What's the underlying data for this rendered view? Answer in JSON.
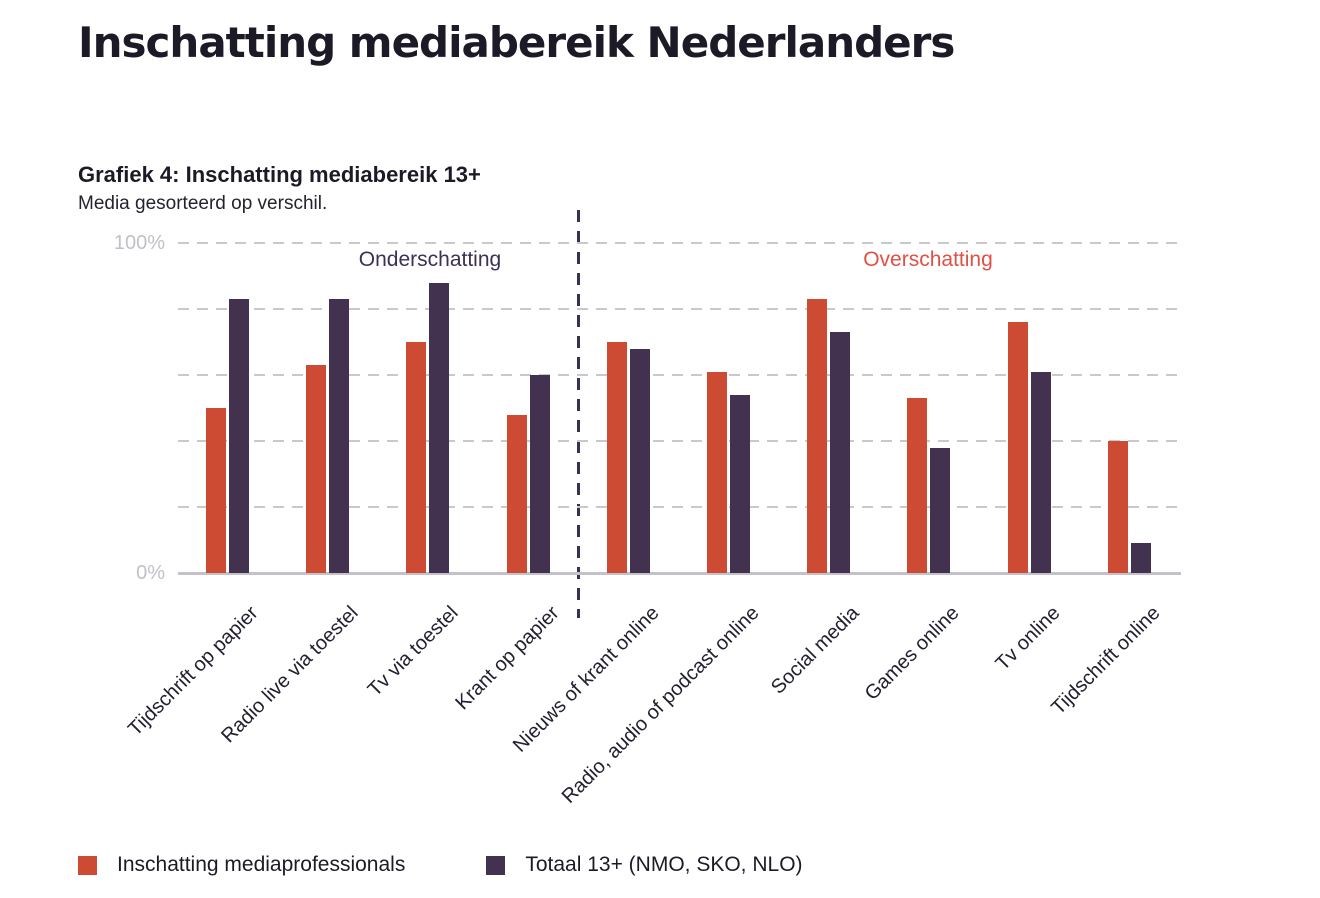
{
  "page": {
    "title": "Inschatting mediabereik Nederlanders",
    "chart_heading": "Grafiek 4: Inschatting mediabereik 13+",
    "chart_subheading": "Media gesorteerd op verschil."
  },
  "chart_data": {
    "type": "bar",
    "title": "Grafiek 4: Inschatting mediabereik 13+",
    "subtitle": "Media gesorteerd op verschil.",
    "ylim": [
      0,
      100
    ],
    "y_unit": "%",
    "ytick_labels": [
      "100%",
      "0%"
    ],
    "gridline_percents": [
      100,
      80,
      60,
      40,
      20
    ],
    "grid": "horizontal-dashed",
    "legend_position": "bottom-left",
    "categories": [
      "Tijdschrift op papier",
      "Radio live via toestel",
      "Tv via toestel",
      "Krant op papier",
      "Nieuws of krant online",
      "Radio, audio of podcast online",
      "Social media",
      "Games online",
      "Tv online",
      "Tijdschrift online"
    ],
    "series": [
      {
        "name": "Inschatting mediaprofessionals",
        "color": "#cd4a33",
        "values": [
          50,
          63,
          70,
          48,
          70,
          61,
          83,
          53,
          76,
          40
        ]
      },
      {
        "name": "Totaal 13+ (NMO, SKO, NLO)",
        "color": "#423250",
        "values": [
          83,
          83,
          88,
          60,
          68,
          54,
          73,
          38,
          61,
          9
        ]
      }
    ],
    "section_labels": [
      {
        "label": "Onderschatting",
        "color": "#3c3156",
        "categories_span": [
          0,
          3
        ]
      },
      {
        "label": "Overschatting",
        "color": "#e25044",
        "categories_span": [
          4,
          9
        ]
      }
    ],
    "separator": {
      "after_category_index": 3,
      "style": "vertical-dashed",
      "color": "#3a3050"
    },
    "colors": {
      "grid": "#c9c8cd",
      "axis_labels": "#c1c0c8",
      "text": "#1d1a28"
    }
  }
}
